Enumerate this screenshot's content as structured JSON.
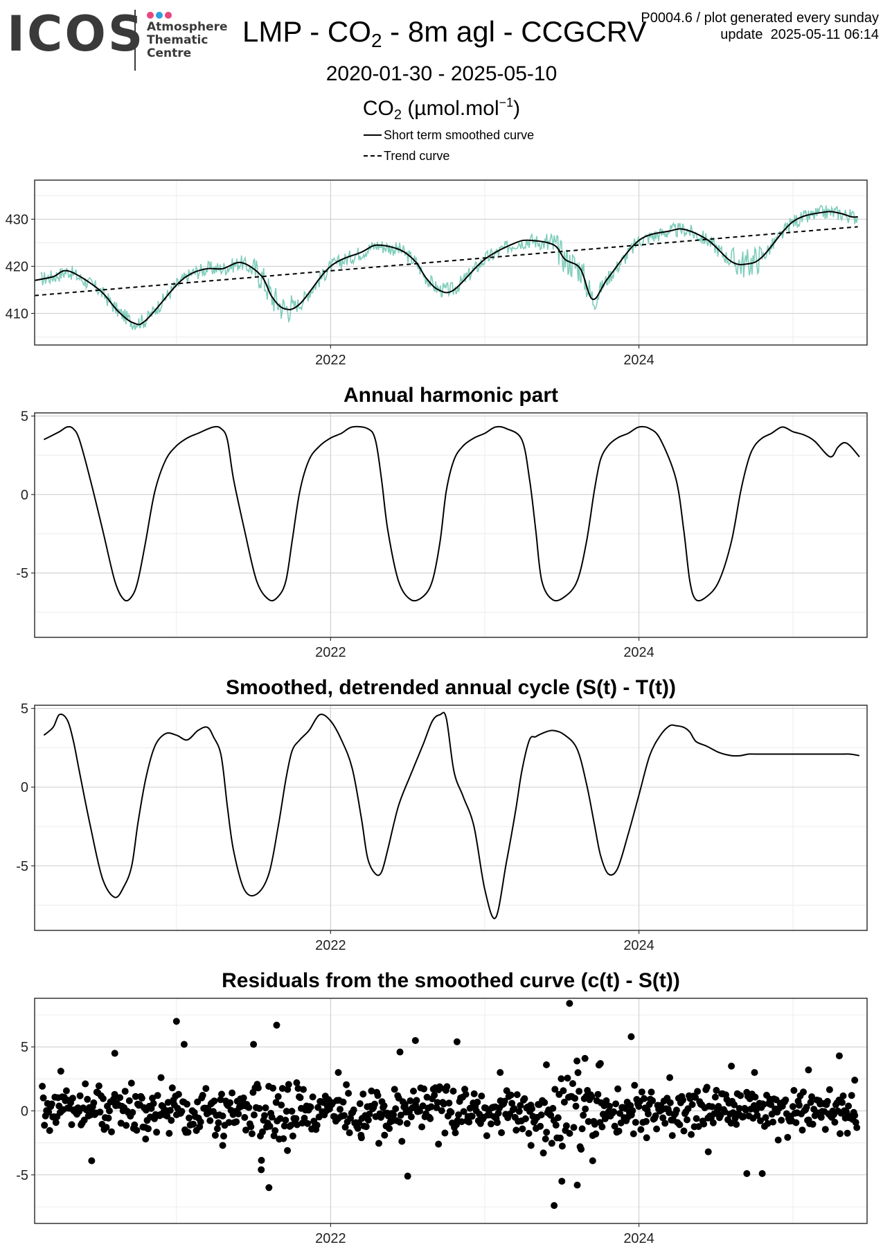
{
  "logo": {
    "word": "ICOS",
    "lines": [
      "Atmosphere",
      "Thematic",
      "Centre"
    ],
    "dot_colors": [
      "#e8467c",
      "#2f9fe0",
      "#e8467c"
    ]
  },
  "header": {
    "title_main": "LMP - CO",
    "title_sub": "2",
    "title_rest": " - 8m agl - CCGCRV",
    "meta_line1": "P0004.6 / plot generated every sunday",
    "meta_line2": "update  2025-05-11 06:14",
    "date_range": "2020-01-30 - 2025-05-10",
    "unit_pre": "CO",
    "unit_sub": "2",
    "unit_mid": " (µmol.mol",
    "unit_sup": "−1",
    "unit_post": ")"
  },
  "legend": [
    {
      "label": "Short term smoothed curve",
      "style": "solid"
    },
    {
      "label": "Trend curve",
      "style": "dashed"
    }
  ],
  "colors": {
    "observations": "#7fcdbb",
    "curve": "#000000",
    "grid_major": "#d0d0d0",
    "grid_minor": "#ececec",
    "frame": "#333333"
  },
  "chart_data": [
    {
      "type": "line",
      "id": "co2",
      "title": "",
      "xlabel": "",
      "ylabel": "",
      "x_unit": "decimal year",
      "xlim": [
        2020.08,
        2025.48
      ],
      "ylim": [
        403.3,
        438.3
      ],
      "xticks": [
        2022,
        2024
      ],
      "xtick_labels": [
        "2022",
        "2024"
      ],
      "yticks": [
        410,
        420,
        430
      ],
      "ytick_labels": [
        "410",
        "420",
        "430"
      ],
      "grid": true,
      "series": [
        {
          "name": "Short term smoothed curve",
          "style": "solid",
          "x": [
            2020.08,
            2020.2,
            2020.3,
            2020.5,
            2020.62,
            2020.72,
            2020.8,
            2021.0,
            2021.1,
            2021.2,
            2021.3,
            2021.42,
            2021.55,
            2021.62,
            2021.7,
            2021.8,
            2022.0,
            2022.2,
            2022.3,
            2022.45,
            2022.55,
            2022.62,
            2022.7,
            2022.8,
            2023.0,
            2023.2,
            2023.3,
            2023.45,
            2023.52,
            2023.62,
            2023.7,
            2023.8,
            2024.0,
            2024.2,
            2024.3,
            2024.45,
            2024.6,
            2024.7,
            2024.8,
            2025.0,
            2025.2,
            2025.3,
            2025.38,
            2025.42
          ],
          "y": [
            417,
            417.8,
            419,
            415,
            410.5,
            408,
            408.5,
            416,
            418.5,
            419.5,
            419.5,
            420.8,
            418,
            413.5,
            411,
            412,
            420,
            423,
            424.5,
            423.5,
            421,
            417.5,
            415,
            415,
            421.5,
            425,
            425.5,
            424.5,
            421.5,
            419.5,
            413,
            417.5,
            425.5,
            427.5,
            427.8,
            425.5,
            421,
            420.5,
            422,
            429.5,
            431.5,
            431.3,
            430.5,
            430.5
          ]
        },
        {
          "name": "Trend curve",
          "style": "dashed",
          "x": [
            2020.08,
            2025.42
          ],
          "y": [
            413.8,
            428.4
          ]
        }
      ],
      "observations": {
        "note_pts": "daily mean observations (teal), scatter around smoothed curve"
      }
    },
    {
      "type": "line",
      "id": "harmonic",
      "title": "Annual harmonic part",
      "xlabel": "",
      "ylabel": "",
      "x_unit": "decimal year",
      "xlim": [
        2020.08,
        2025.48
      ],
      "ylim": [
        -9.1,
        5.2
      ],
      "xticks": [
        2022,
        2024
      ],
      "xtick_labels": [
        "2022",
        "2024"
      ],
      "yticks": [
        -5,
        0,
        5
      ],
      "ytick_labels": [
        "-5",
        "0",
        "5"
      ],
      "grid": true,
      "series": [
        {
          "name": "",
          "style": "solid",
          "x": [
            2020.14,
            2020.24,
            2020.29,
            2020.33,
            2020.37,
            2020.44,
            2020.52,
            2020.6,
            2020.66,
            2020.71,
            2020.75,
            2020.8,
            2020.86,
            2020.93,
            2021.0,
            2021.07,
            2021.14,
            2021.24,
            2021.29,
            2021.33,
            2021.37,
            2021.44,
            2021.52,
            2021.6,
            2021.66,
            2021.71,
            2021.75,
            2021.8,
            2021.86,
            2021.93,
            2022.0,
            2022.07,
            2022.14,
            2022.24,
            2022.29,
            2022.33,
            2022.37,
            2022.44,
            2022.52,
            2022.6,
            2022.66,
            2022.71,
            2022.75,
            2022.8,
            2022.86,
            2022.93,
            2023.0,
            2023.07,
            2023.14,
            2023.24,
            2023.29,
            2023.33,
            2023.37,
            2023.44,
            2023.52,
            2023.6,
            2023.66,
            2023.71,
            2023.75,
            2023.8,
            2023.86,
            2023.93,
            2024.0,
            2024.07,
            2024.14,
            2024.24,
            2024.29,
            2024.33,
            2024.37,
            2024.44,
            2024.52,
            2024.6,
            2024.66,
            2024.71,
            2024.75,
            2024.8,
            2024.86,
            2024.93,
            2025.0,
            2025.07,
            2025.14,
            2025.24,
            2025.29,
            2025.33,
            2025.37,
            2025.43
          ],
          "y": [
            3.5,
            4.0,
            4.3,
            4.2,
            3.5,
            1.0,
            -2.2,
            -5.5,
            -6.7,
            -6.5,
            -5.5,
            -3.0,
            0.2,
            2.2,
            3.1,
            3.6,
            3.9,
            4.3,
            4.2,
            3.5,
            1.0,
            -2.2,
            -5.5,
            -6.7,
            -6.5,
            -5.5,
            -3.0,
            0.2,
            2.2,
            3.1,
            3.6,
            3.9,
            4.3,
            4.2,
            3.5,
            1.0,
            -2.2,
            -5.5,
            -6.7,
            -6.5,
            -5.5,
            -3.0,
            0.2,
            2.2,
            3.1,
            3.6,
            3.9,
            4.3,
            4.2,
            3.5,
            1.0,
            -2.2,
            -5.5,
            -6.7,
            -6.5,
            -5.5,
            -3.0,
            0.2,
            2.2,
            3.1,
            3.6,
            3.9,
            4.3,
            4.2,
            3.5,
            1.0,
            -2.2,
            -5.5,
            -6.7,
            -6.5,
            -5.5,
            -3.0,
            0.2,
            2.2,
            3.1,
            3.6,
            3.9,
            4.3,
            4.0,
            3.8,
            3.4,
            2.4,
            3.0,
            3.3,
            3.1,
            2.4
          ]
        }
      ]
    },
    {
      "type": "line",
      "id": "detrended",
      "title": "Smoothed, detrended annual cycle (S(t) - T(t))",
      "xlabel": "",
      "ylabel": "",
      "x_unit": "decimal year",
      "xlim": [
        2020.08,
        2025.48
      ],
      "ylim": [
        -9.1,
        5.2
      ],
      "xticks": [
        2022,
        2024
      ],
      "xtick_labels": [
        "2022",
        "2024"
      ],
      "yticks": [
        -5,
        0,
        5
      ],
      "ytick_labels": [
        "-5",
        "0",
        "5"
      ],
      "grid": true,
      "series": [
        {
          "name": "",
          "style": "solid",
          "x": [
            2020.14,
            2020.2,
            2020.24,
            2020.29,
            2020.33,
            2020.37,
            2020.44,
            2020.52,
            2020.6,
            2020.66,
            2020.71,
            2020.75,
            2020.8,
            2020.86,
            2020.93,
            2021.0,
            2021.07,
            2021.14,
            2021.2,
            2021.24,
            2021.29,
            2021.33,
            2021.37,
            2021.44,
            2021.52,
            2021.6,
            2021.66,
            2021.71,
            2021.75,
            2021.8,
            2021.86,
            2021.93,
            2022.0,
            2022.07,
            2022.14,
            2022.2,
            2022.24,
            2022.29,
            2022.33,
            2022.37,
            2022.44,
            2022.52,
            2022.6,
            2022.66,
            2022.71,
            2022.75,
            2022.8,
            2022.86,
            2022.93,
            2023.0,
            2023.07,
            2023.14,
            2023.2,
            2023.24,
            2023.29,
            2023.33,
            2023.37,
            2023.44,
            2023.52,
            2023.6,
            2023.66,
            2023.71,
            2023.75,
            2023.8,
            2023.86,
            2023.93,
            2024.0,
            2024.07,
            2024.14,
            2024.2,
            2024.24,
            2024.29,
            2024.33,
            2024.37,
            2024.44,
            2024.52,
            2024.6,
            2024.66,
            2024.71,
            2024.75,
            2024.8,
            2024.86,
            2024.93,
            2025.0,
            2025.07,
            2025.14,
            2025.2,
            2025.24,
            2025.29,
            2025.33,
            2025.37,
            2025.43
          ],
          "y": [
            3.3,
            3.8,
            4.6,
            4.3,
            3.0,
            1.0,
            -2.4,
            -5.8,
            -7.0,
            -6.3,
            -5.0,
            -2.3,
            0.5,
            2.6,
            3.4,
            3.3,
            3.0,
            3.6,
            3.8,
            3.2,
            2.0,
            -1.2,
            -4.0,
            -6.5,
            -6.8,
            -5.5,
            -2.5,
            0.5,
            2.3,
            3.0,
            3.6,
            4.6,
            4.2,
            3.0,
            1.2,
            -2.0,
            -4.5,
            -5.5,
            -5.4,
            -4.0,
            -1.2,
            0.8,
            2.7,
            4.2,
            4.6,
            4.4,
            1.0,
            -0.6,
            -2.5,
            -6.5,
            -8.3,
            -4.8,
            -1.5,
            1.0,
            3.0,
            3.2,
            3.4,
            3.6,
            3.3,
            2.4,
            0.2,
            -2.3,
            -4.3,
            -5.5,
            -5.2,
            -3.0,
            -0.5,
            2.0,
            3.3,
            3.9,
            3.9,
            3.8,
            3.5,
            2.9,
            2.6,
            2.2,
            2.0,
            2.0,
            2.1,
            2.1,
            2.1,
            2.1,
            2.1,
            2.1,
            2.1,
            2.1,
            2.1,
            2.1,
            2.1,
            2.1,
            2.1,
            2.0
          ]
        }
      ]
    },
    {
      "type": "scatter",
      "id": "residuals",
      "title": "Residuals from the smoothed curve (c(t) - S(t))",
      "xlabel": "",
      "ylabel": "",
      "x_unit": "decimal year",
      "xlim": [
        2020.08,
        2025.48
      ],
      "ylim": [
        -8.8,
        8.8
      ],
      "xticks": [
        2022,
        2024
      ],
      "xtick_labels": [
        "2022",
        "2024"
      ],
      "yticks": [
        -5,
        0,
        5
      ],
      "ytick_labels": [
        "-5",
        "0",
        "5"
      ],
      "grid": true,
      "series": [
        {
          "name": "",
          "note": "daily residuals, mostly within ±3",
          "x": [
            2020.25,
            2020.45,
            2020.6,
            2020.8,
            2020.9,
            2021.0,
            2021.05,
            2021.3,
            2021.45,
            2021.5,
            2021.55,
            2021.6,
            2021.65,
            2021.72,
            2021.78,
            2022.05,
            2022.2,
            2022.35,
            2022.45,
            2022.5,
            2022.55,
            2022.7,
            2022.82,
            2023.1,
            2023.3,
            2023.4,
            2023.45,
            2023.5,
            2023.55,
            2023.6,
            2023.65,
            2023.7,
            2023.75,
            2023.95,
            2024.05,
            2024.2,
            2024.45,
            2024.6,
            2024.7,
            2024.75,
            2024.8,
            2025.1,
            2025.3,
            2025.4
          ],
          "y": [
            3.1,
            -3.9,
            4.5,
            -2.2,
            2.6,
            7.0,
            5.2,
            -2.7,
            -1.5,
            5.2,
            -4.6,
            -6.0,
            6.7,
            -3.1,
            2.2,
            3.0,
            -2.1,
            -1.9,
            4.6,
            -5.1,
            5.5,
            -2.6,
            5.4,
            3.0,
            -2.7,
            3.6,
            -7.4,
            -5.5,
            8.4,
            -5.8,
            4.1,
            -3.9,
            3.7,
            5.8,
            -2.1,
            2.6,
            -3.2,
            3.5,
            -4.9,
            3.0,
            -4.9,
            3.2,
            4.3,
            2.4
          ]
        }
      ]
    }
  ]
}
